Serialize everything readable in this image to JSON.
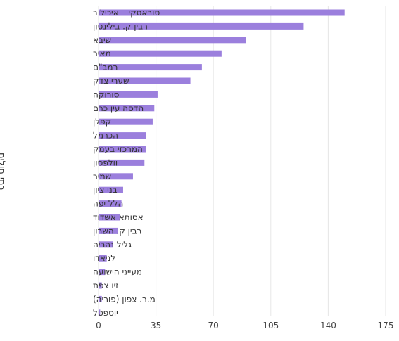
{
  "chart_data": {
    "type": "bar",
    "orientation": "horizontal",
    "categories": [
      "סוראסקי – איכילוב",
      "רבין ק. בילינסון",
      "שיבא",
      "מאיר",
      "רמב\"ם",
      "שערי צדק",
      "סורוקה",
      "הדסה עין כרם",
      "קפלן",
      "הכרמל",
      "המרכזי בעמק",
      "וולפסון",
      "שמיר",
      "בני ציון",
      "הלל יפה",
      "אסותא אשדוד",
      "רבין ק. השרון",
      "גליל נהריה",
      "לניאדו",
      "מעייני הישועה",
      "זיו צפת",
      "מ.ר. צפון (פוריה)",
      "יוספטל"
    ],
    "values": [
      150,
      125,
      90,
      75,
      63,
      56,
      36,
      34,
      33,
      29,
      29,
      28,
      21,
      15,
      14,
      13,
      12,
      9,
      5,
      4,
      2,
      2,
      1
    ],
    "xlim": [
      0,
      175
    ],
    "xticks": [
      0,
      35,
      70,
      105,
      140,
      175
    ],
    "xtick_labels": [
      "0",
      "35",
      "70",
      "105",
      "140",
      "175"
    ],
    "ylabel": "בתי חולים",
    "xlabel": "",
    "grid": "vertical",
    "bar_color": "#9b7fdd"
  }
}
